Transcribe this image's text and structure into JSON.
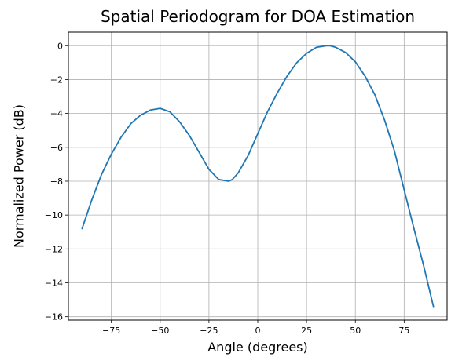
{
  "chart_data": {
    "type": "line",
    "title": "Spatial Periodogram for DOA Estimation",
    "xlabel": "Angle (degrees)",
    "ylabel": "Normalized Power (dB)",
    "xlim": [
      -97,
      97
    ],
    "ylim": [
      -16.2,
      0.8
    ],
    "xticks": [
      -75,
      -50,
      -25,
      0,
      25,
      50,
      75
    ],
    "xtick_labels": [
      "−75",
      "−50",
      "−25",
      "0",
      "25",
      "50",
      "75"
    ],
    "yticks": [
      0,
      -2,
      -4,
      -6,
      -8,
      -10,
      -12,
      -14,
      -16
    ],
    "ytick_labels": [
      "0",
      "−2",
      "−4",
      "−6",
      "−8",
      "−10",
      "−12",
      "−14",
      "−16"
    ],
    "grid": true,
    "series": [
      {
        "color": "#1f77b4",
        "x": [
          -90,
          -85,
          -80,
          -75,
          -70,
          -65,
          -60,
          -55,
          -50,
          -45,
          -40,
          -35,
          -30,
          -25,
          -20,
          -15,
          -13,
          -10,
          -5,
          0,
          5,
          10,
          15,
          20,
          25,
          30,
          35,
          37,
          40,
          45,
          50,
          55,
          60,
          65,
          70,
          75,
          80,
          85,
          90
        ],
        "y": [
          -10.8,
          -9.1,
          -7.6,
          -6.4,
          -5.4,
          -4.6,
          -4.1,
          -3.8,
          -3.7,
          -3.9,
          -4.5,
          -5.3,
          -6.3,
          -7.3,
          -7.9,
          -8.0,
          -7.9,
          -7.5,
          -6.5,
          -5.2,
          -3.9,
          -2.8,
          -1.8,
          -1.0,
          -0.45,
          -0.1,
          0.0,
          0.0,
          -0.1,
          -0.4,
          -0.95,
          -1.8,
          -2.9,
          -4.4,
          -6.2,
          -8.5,
          -10.8,
          -13.0,
          -15.4
        ]
      }
    ]
  }
}
